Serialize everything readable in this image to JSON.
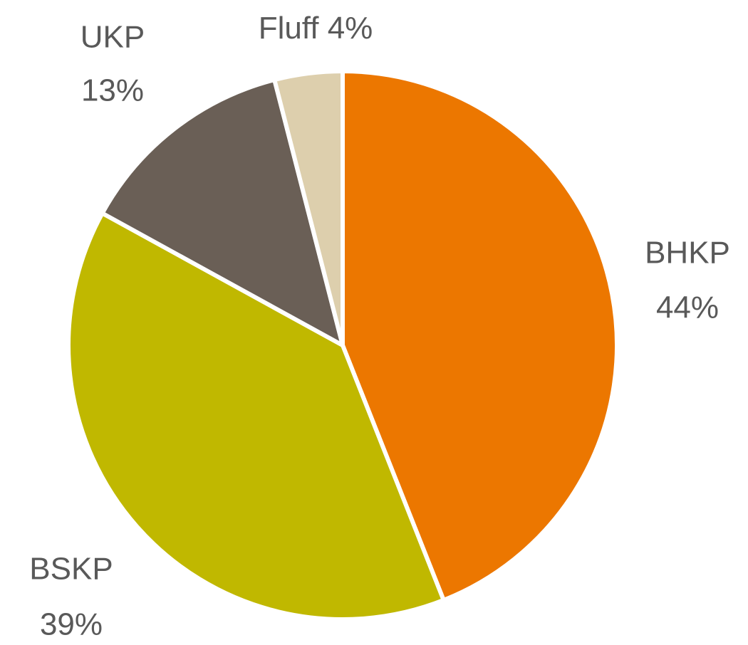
{
  "chart_data": {
    "type": "pie",
    "categories": [
      "BHKP",
      "BSKP",
      "UKP",
      "Fluff"
    ],
    "values": [
      44,
      39,
      13,
      4
    ],
    "value_labels": [
      "44%",
      "39%",
      "13%",
      "4%"
    ],
    "colors": [
      "#ec7700",
      "#c0b800",
      "#6a5f56",
      "#ddcfad"
    ]
  }
}
